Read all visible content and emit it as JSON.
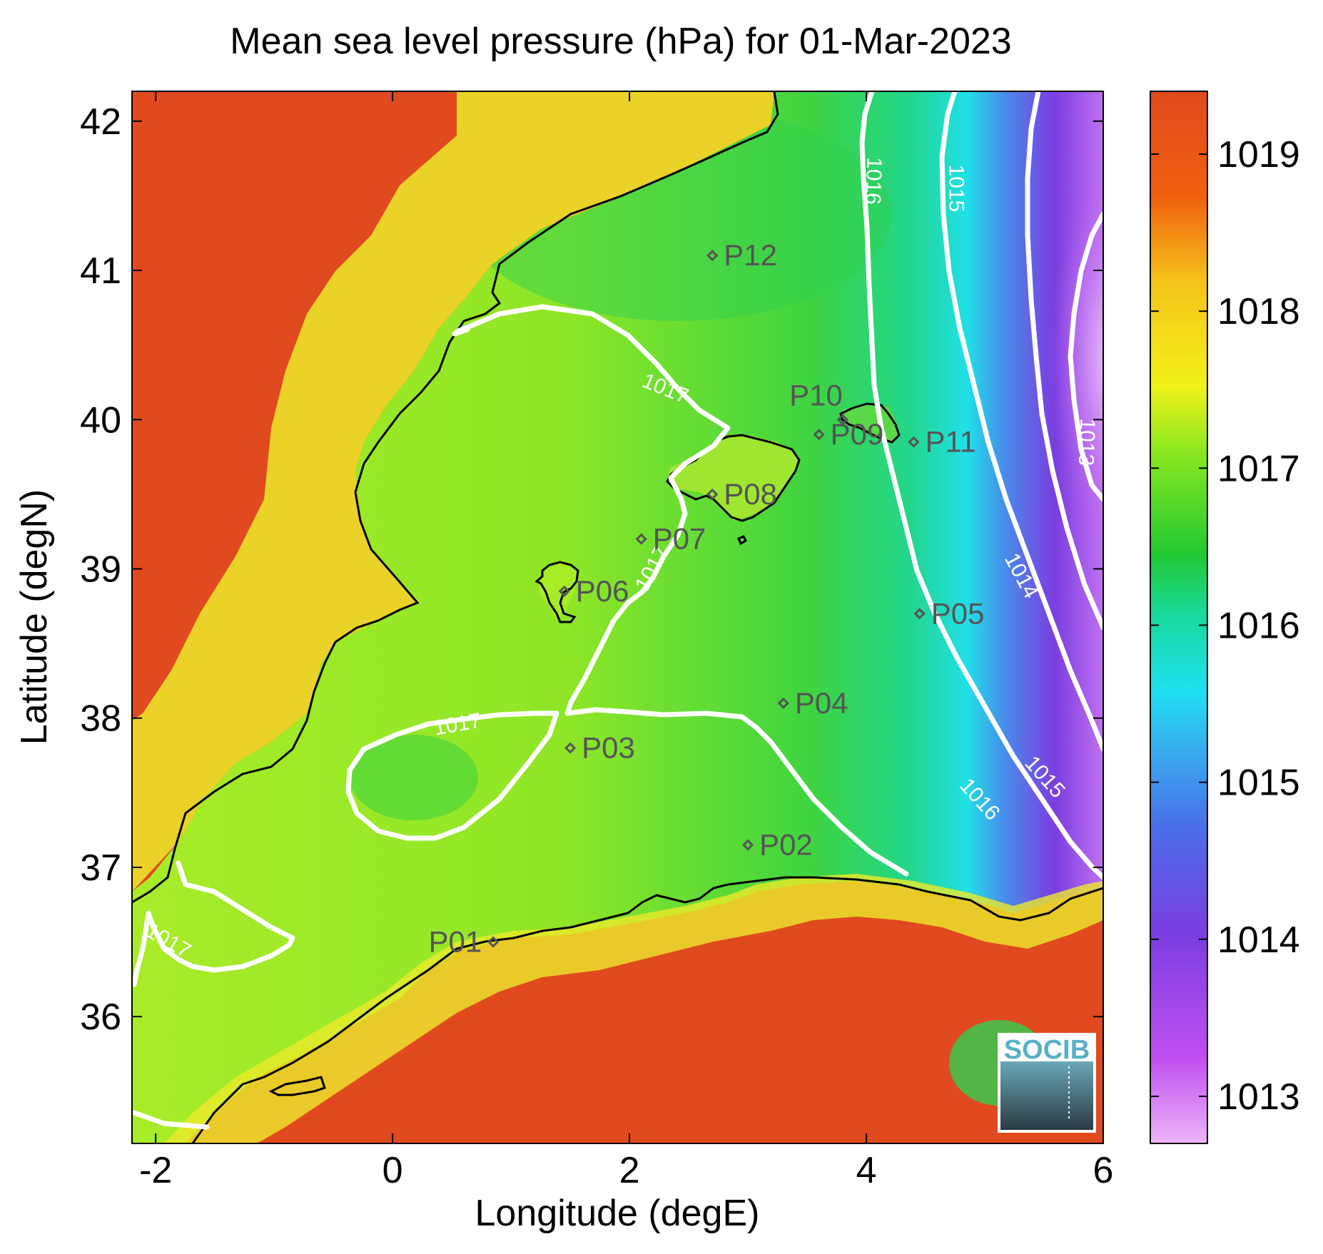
{
  "figure": {
    "title": "Mean sea level pressure (hPa) for 01-Mar-2023",
    "xlabel": "Longitude (degE)",
    "ylabel": "Latitude (degN)",
    "logo_text": "SOCIB"
  },
  "colors": {
    "land_high": "#e04a1e",
    "coastline": "#000000",
    "contour": "#ffffff",
    "station_marker": "#555555",
    "colorbar_stops": [
      "#e6a6f5",
      "#c050f0",
      "#7a3de0",
      "#4a6ee8",
      "#20e0f0",
      "#18d9a0",
      "#22c832",
      "#8ee820",
      "#f2f21a",
      "#f5c21a",
      "#f06010",
      "#e04a1e"
    ]
  },
  "chart_data": {
    "type": "heatmap",
    "title": "Mean sea level pressure (hPa) for 01-Mar-2023",
    "xlabel": "Longitude (degE)",
    "ylabel": "Latitude (degN)",
    "xlim": [
      -2.2,
      6.0
    ],
    "ylim": [
      35.15,
      42.2
    ],
    "xticks": [
      -2,
      0,
      2,
      4,
      6
    ],
    "yticks": [
      36,
      37,
      38,
      39,
      40,
      41,
      42
    ],
    "colorbar": {
      "range": [
        1012.7,
        1019.4
      ],
      "ticks": [
        1013,
        1014,
        1015,
        1016,
        1017,
        1018,
        1019
      ]
    },
    "stations": [
      {
        "name": "P01",
        "lon": 0.85,
        "lat": 36.5
      },
      {
        "name": "P02",
        "lon": 3.0,
        "lat": 37.15
      },
      {
        "name": "P03",
        "lon": 1.5,
        "lat": 37.8
      },
      {
        "name": "P04",
        "lon": 3.3,
        "lat": 38.1
      },
      {
        "name": "P05",
        "lon": 4.45,
        "lat": 38.7
      },
      {
        "name": "P06",
        "lon": 1.45,
        "lat": 38.85
      },
      {
        "name": "P07",
        "lon": 2.1,
        "lat": 39.2
      },
      {
        "name": "P08",
        "lon": 2.7,
        "lat": 39.5
      },
      {
        "name": "P09",
        "lon": 3.6,
        "lat": 39.9
      },
      {
        "name": "P10",
        "lon": 3.8,
        "lat": 40.0
      },
      {
        "name": "P11",
        "lon": 4.4,
        "lat": 39.85
      },
      {
        "name": "P12",
        "lon": 2.7,
        "lat": 41.1
      }
    ],
    "contour_labels": [
      {
        "text": "1017",
        "lon": 2.3,
        "lat": 40.2,
        "angle": 22
      },
      {
        "text": "1017",
        "lon": 2.2,
        "lat": 39.0,
        "angle": -62
      },
      {
        "text": "1017",
        "lon": 0.55,
        "lat": 37.95,
        "angle": -10
      },
      {
        "text": "1017",
        "lon": -1.9,
        "lat": 36.5,
        "angle": 30
      },
      {
        "text": "1016",
        "lon": 4.05,
        "lat": 41.6,
        "angle": 92
      },
      {
        "text": "1015",
        "lon": 4.75,
        "lat": 41.55,
        "angle": 90
      },
      {
        "text": "1013",
        "lon": 5.85,
        "lat": 39.85,
        "angle": 92
      },
      {
        "text": "1014",
        "lon": 5.3,
        "lat": 38.95,
        "angle": 62
      },
      {
        "text": "1015",
        "lon": 5.5,
        "lat": 37.6,
        "angle": 48
      },
      {
        "text": "1016",
        "lon": 4.95,
        "lat": 37.45,
        "angle": 48
      }
    ]
  }
}
